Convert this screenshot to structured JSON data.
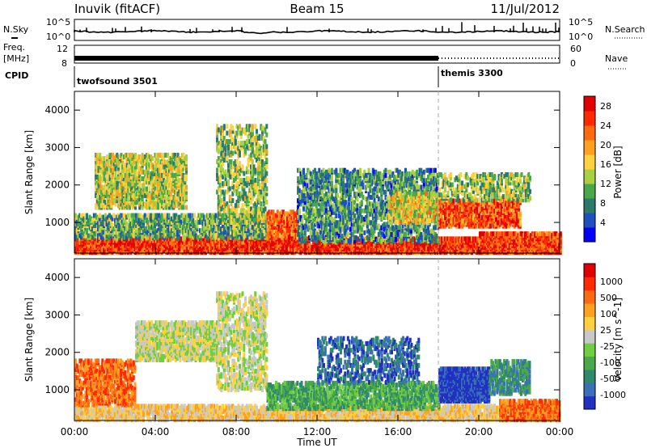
{
  "header": {
    "station": "Inuvik (fitACF)",
    "beam": "Beam 15",
    "date": "11/Jul/2012"
  },
  "strips": {
    "nsky_label": "N.Sky",
    "nsearch_label": "N.Search",
    "freq_label_1": "Freq.",
    "freq_label_2": "[MHz]",
    "nave_label": "Nave",
    "cpid_label": "CPID",
    "left_ticks_top": [
      "10^5",
      "10^0"
    ],
    "right_ticks_top": [
      "10^5",
      "10^0"
    ],
    "freq_ticks": [
      "12",
      "8"
    ],
    "nave_ticks": [
      "60",
      "0"
    ],
    "cpid_segments": [
      {
        "name": "twofsound 3501",
        "start_hour": 0.0
      },
      {
        "name": "themis 3300",
        "start_hour": 18.0
      }
    ]
  },
  "chart_data": [
    {
      "type": "heatmap",
      "title": "",
      "ylabel": "Slant Range [km]",
      "xlabel": "",
      "x_ticks": [
        "00:00",
        "04:00",
        "08:00",
        "12:00",
        "16:00",
        "20:00",
        "00:00"
      ],
      "xlim": [
        0,
        24
      ],
      "ylim": [
        180,
        4500
      ],
      "y_ticks": [
        1000,
        2000,
        3000,
        4000
      ],
      "colorbar": {
        "label": "Power [dB]",
        "ticks": [
          4,
          8,
          12,
          16,
          20,
          24,
          28
        ],
        "range": [
          0,
          30
        ],
        "colors": [
          "#0000ff",
          "#1f4fbf",
          "#2e7a6a",
          "#4aa84a",
          "#a8d040",
          "#ffd040",
          "#ffa020",
          "#ff6a10",
          "#ff2a00",
          "#e00000"
        ]
      },
      "scatter_regions": [
        {
          "t0": 0.0,
          "t1": 24.0,
          "r0": 200,
          "r1": 600,
          "level": 27,
          "density": 0.8
        },
        {
          "t0": 0.0,
          "t1": 10.0,
          "r0": 600,
          "r1": 1200,
          "level": 10,
          "density": 0.55
        },
        {
          "t0": 1.0,
          "t1": 5.5,
          "r0": 1400,
          "r1": 2800,
          "level": 14,
          "density": 0.5
        },
        {
          "t0": 7.0,
          "t1": 9.5,
          "r0": 1000,
          "r1": 3600,
          "level": 12,
          "density": 0.3
        },
        {
          "t0": 9.5,
          "t1": 11.0,
          "r0": 600,
          "r1": 1300,
          "level": 24,
          "density": 0.6
        },
        {
          "t0": 11.0,
          "t1": 18.0,
          "r0": 500,
          "r1": 2400,
          "level": 8,
          "density": 0.35
        },
        {
          "t0": 15.5,
          "t1": 18.0,
          "r0": 1000,
          "r1": 1800,
          "level": 16,
          "density": 0.45
        },
        {
          "t0": 18.0,
          "t1": 22.0,
          "r0": 900,
          "r1": 1600,
          "level": 25,
          "density": 0.65
        },
        {
          "t0": 18.0,
          "t1": 22.5,
          "r0": 1600,
          "r1": 2300,
          "level": 12,
          "density": 0.3
        },
        {
          "t0": 20.0,
          "t1": 24.0,
          "r0": 200,
          "r1": 700,
          "level": 26,
          "density": 0.85
        }
      ]
    },
    {
      "type": "heatmap",
      "title": "",
      "ylabel": "Slant Range [km]",
      "xlabel": "Time UT",
      "x_ticks": [
        "00:00",
        "04:00",
        "08:00",
        "12:00",
        "16:00",
        "20:00",
        "00:00"
      ],
      "xlim": [
        0,
        24
      ],
      "ylim": [
        180,
        4500
      ],
      "y_ticks": [
        1000,
        2000,
        3000,
        4000
      ],
      "colorbar": {
        "label": "Velocity [m s^-1]",
        "ticks": [
          "1000",
          "500",
          "100",
          "25",
          "-25",
          "-100",
          "-500",
          "-1000"
        ],
        "colors": [
          "#2030c0",
          "#3a70b8",
          "#2e8a6a",
          "#4aa84a",
          "#70cc40",
          "#c8c8c8",
          "#ffd040",
          "#ffa020",
          "#ff6a10",
          "#ff2a00",
          "#e00000"
        ]
      },
      "scatter_regions": [
        {
          "t0": 0.0,
          "t1": 24.0,
          "r0": 200,
          "r1": 600,
          "level": 6,
          "density": 0.6
        },
        {
          "t0": 0.0,
          "t1": 3.0,
          "r0": 600,
          "r1": 1800,
          "level": 8,
          "density": 0.45
        },
        {
          "t0": 3.0,
          "t1": 7.0,
          "r0": 1800,
          "r1": 2800,
          "level": 5,
          "density": 0.55
        },
        {
          "t0": 7.0,
          "t1": 9.5,
          "r0": 1000,
          "r1": 3600,
          "level": 5,
          "density": 0.3
        },
        {
          "t0": 9.5,
          "t1": 18.0,
          "r0": 500,
          "r1": 1200,
          "level": 3,
          "density": 0.5
        },
        {
          "t0": 12.0,
          "t1": 17.0,
          "r0": 1200,
          "r1": 2400,
          "level": 1,
          "density": 0.25
        },
        {
          "t0": 18.0,
          "t1": 20.5,
          "r0": 700,
          "r1": 1600,
          "level": 0,
          "density": 0.8
        },
        {
          "t0": 20.5,
          "t1": 22.5,
          "r0": 900,
          "r1": 1800,
          "level": 2,
          "density": 0.45
        },
        {
          "t0": 21.0,
          "t1": 24.0,
          "r0": 200,
          "r1": 700,
          "level": 8,
          "density": 0.75
        }
      ]
    }
  ]
}
